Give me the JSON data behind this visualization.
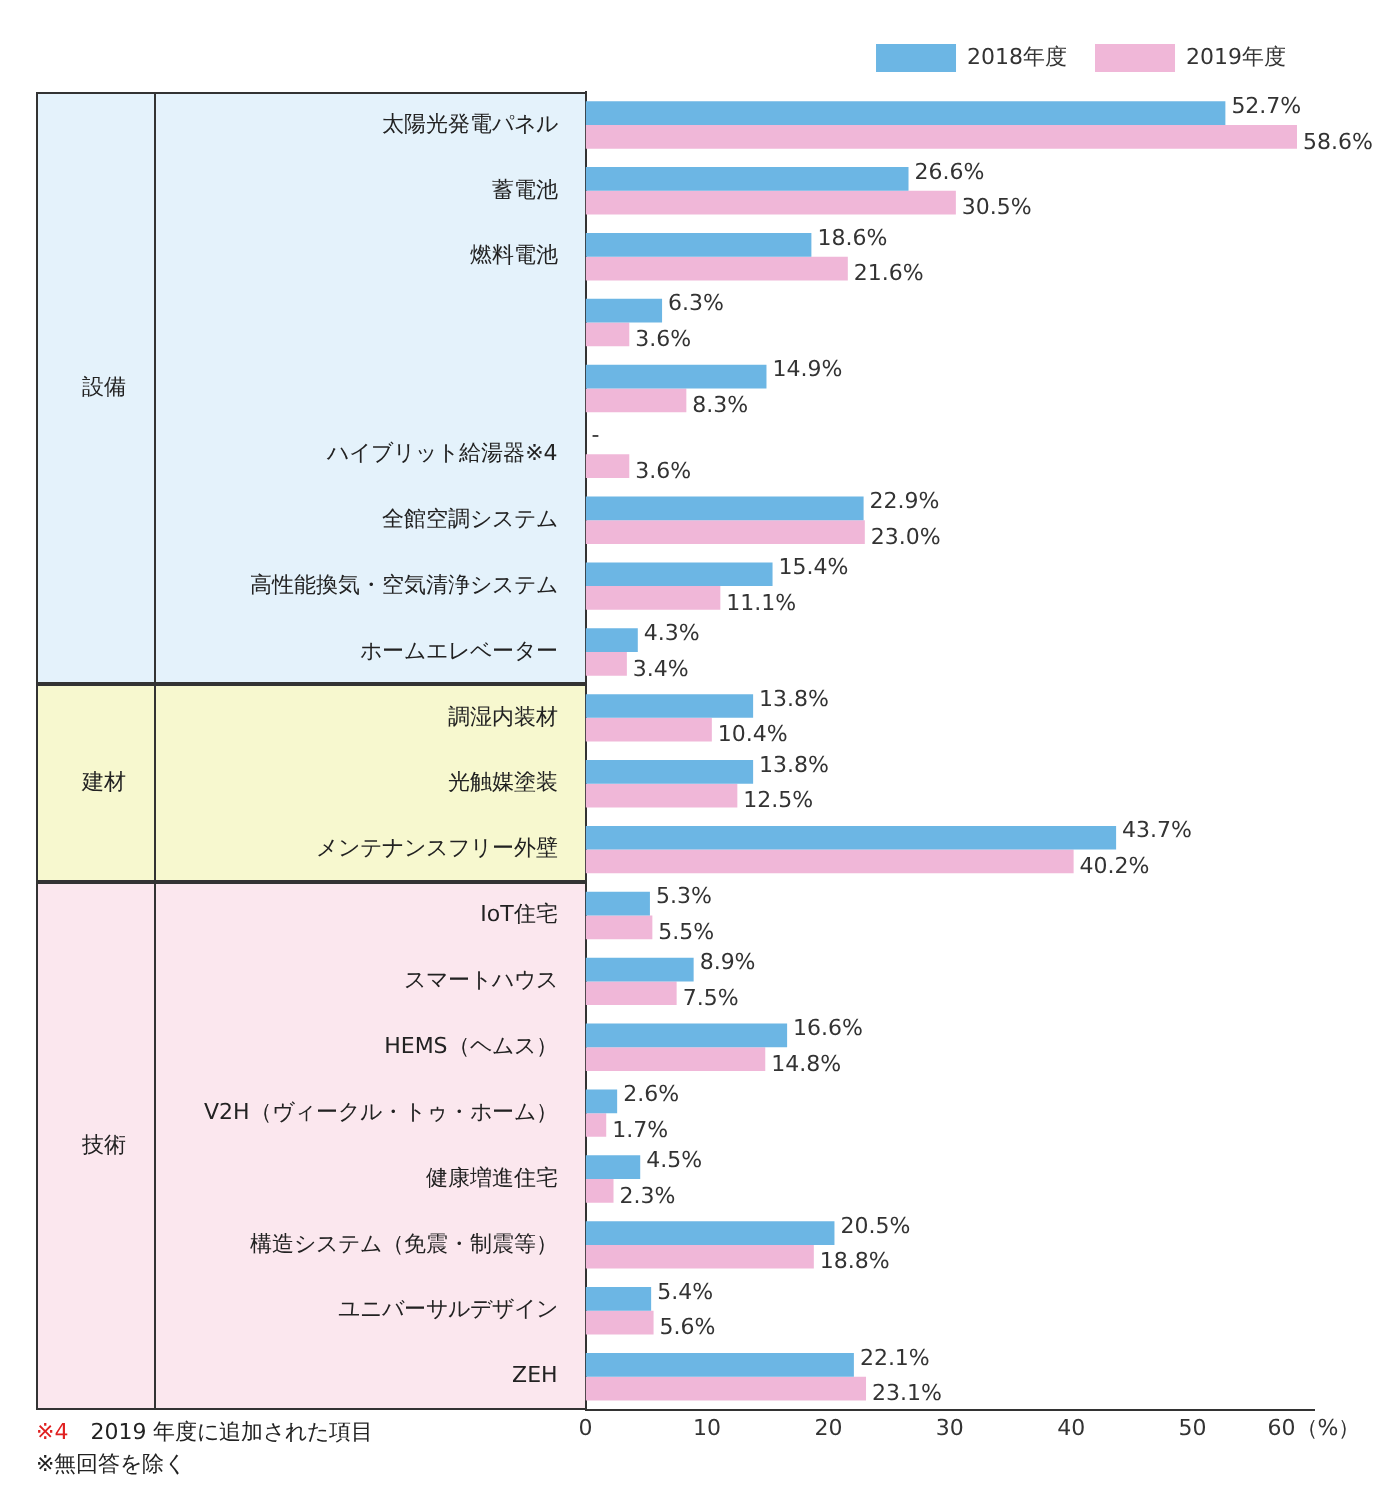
{
  "chart_data": {
    "type": "bar",
    "orientation": "horizontal",
    "categories": [
      "太陽光発電パネル",
      "蓄電池",
      "燃料電池",
      null,
      null,
      "ハイブリット給湯器※4",
      "全館空調システム",
      "高性能換気・空気清浄システム",
      "ホームエレベーター",
      "調湿内装材",
      "光触媒塗装",
      "メンテナンスフリー外壁",
      "IoT住宅",
      "スマートハウス",
      "HEMS（ヘムス）",
      "V2H（ヴィークル・トゥ・ホーム）",
      "健康増進住宅",
      "構造システム（免震・制震等）",
      "ユニバーサルデザイン",
      "ZEH"
    ],
    "series": [
      {
        "name": "2018年度",
        "color": "#6cb6e4",
        "values": [
          52.7,
          26.6,
          18.6,
          6.3,
          14.9,
          null,
          22.9,
          15.4,
          4.3,
          13.8,
          13.8,
          43.7,
          5.3,
          8.9,
          16.6,
          2.6,
          4.5,
          20.5,
          5.4,
          22.1
        ],
        "value_labels": [
          "52.7%",
          "26.6%",
          "18.6%",
          "6.3%",
          "14.9%",
          "-",
          "22.9%",
          "15.4%",
          "4.3%",
          "13.8%",
          "13.8%",
          "43.7%",
          "5.3%",
          "8.9%",
          "16.6%",
          "2.6%",
          "4.5%",
          "20.5%",
          "5.4%",
          "22.1%"
        ]
      },
      {
        "name": "2019年度",
        "color": "#f0b7d8",
        "values": [
          58.6,
          30.5,
          21.6,
          3.6,
          8.3,
          3.6,
          23.0,
          11.1,
          3.4,
          10.4,
          12.5,
          40.2,
          5.5,
          7.5,
          14.8,
          1.7,
          2.3,
          18.8,
          5.6,
          23.1
        ],
        "value_labels": [
          "58.6%",
          "30.5%",
          "21.6%",
          "3.6%",
          "8.3%",
          "3.6%",
          "23.0%",
          "11.1%",
          "3.4%",
          "10.4%",
          "12.5%",
          "40.2%",
          "5.5%",
          "7.5%",
          "14.8%",
          "1.7%",
          "2.3%",
          "18.8%",
          "5.6%",
          "23.1%"
        ]
      }
    ],
    "xlim": [
      0,
      60
    ],
    "xticks": [
      0,
      10,
      20,
      30,
      40,
      50,
      {
        "value": 60,
        "label": "60（%）"
      }
    ],
    "grid": false,
    "legend": "top right",
    "annotations": [
      "設備",
      "建材",
      "技術",
      "※4　2019 年度に追加された項目",
      "※無回答を除く"
    ]
  }
}
